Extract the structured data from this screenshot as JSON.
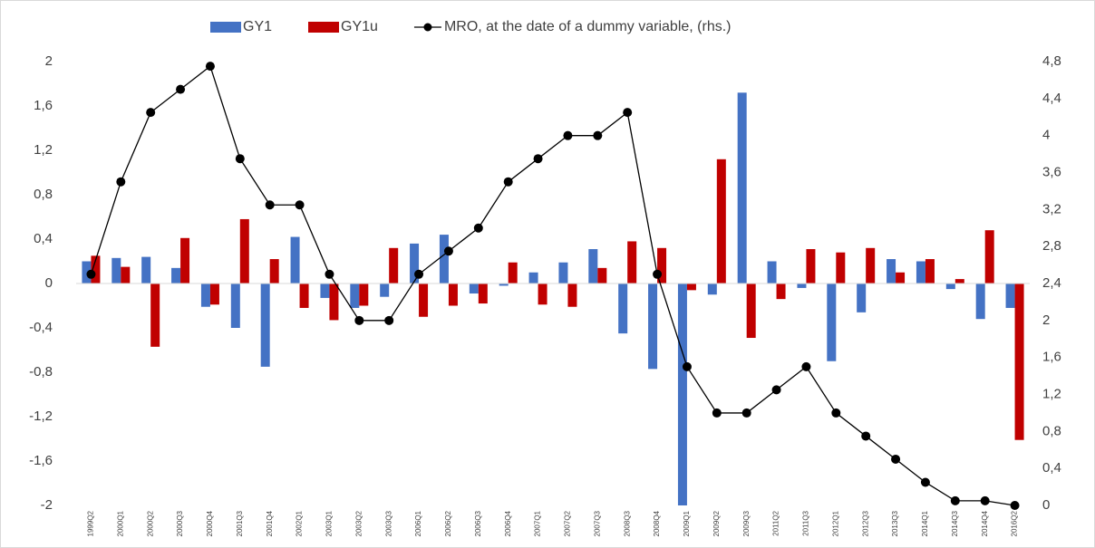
{
  "chart_data": {
    "type": "bar-line",
    "categories": [
      "1999Q2",
      "2000Q1",
      "2000Q2",
      "2000Q3",
      "2000Q4",
      "2001Q3",
      "2001Q4",
      "2002Q1",
      "2003Q1",
      "2003Q2",
      "2003Q3",
      "2006Q1",
      "2006Q2",
      "2006Q3",
      "2006Q4",
      "2007Q1",
      "2007Q2",
      "2007Q3",
      "2008Q3",
      "2008Q4",
      "2009Q1",
      "2009Q2",
      "2009Q3",
      "2011Q2",
      "2011Q3",
      "2012Q1",
      "2012Q3",
      "2013Q3",
      "2014Q1",
      "2014Q3",
      "2014Q4",
      "2016Q2"
    ],
    "series": [
      {
        "name": "GY1",
        "color": "#4472c4",
        "kind": "bar",
        "values": [
          0.2,
          0.23,
          0.24,
          0.14,
          -0.21,
          -0.4,
          -0.75,
          0.42,
          -0.13,
          -0.22,
          -0.12,
          0.36,
          0.44,
          -0.09,
          -0.02,
          0.1,
          0.19,
          0.31,
          -0.45,
          -0.77,
          -2.0,
          -0.1,
          1.72,
          0.2,
          -0.04,
          -0.7,
          -0.26,
          0.22,
          0.2,
          -0.05,
          -0.32,
          -0.22
        ]
      },
      {
        "name": "GY1u",
        "color": "#c00000",
        "kind": "bar",
        "values": [
          0.25,
          0.15,
          -0.57,
          0.41,
          -0.19,
          0.58,
          0.22,
          -0.22,
          -0.33,
          -0.2,
          0.32,
          -0.3,
          -0.2,
          -0.18,
          0.19,
          -0.19,
          -0.21,
          0.14,
          0.38,
          0.32,
          -0.06,
          1.12,
          -0.49,
          -0.14,
          0.31,
          0.28,
          0.32,
          0.1,
          0.22,
          0.04,
          0.48,
          -1.41
        ]
      },
      {
        "name": "MRO, at the date of a dummy variable, (rhs.)",
        "color": "#000000",
        "kind": "line",
        "axis": "y2",
        "values": [
          2.5,
          3.5,
          4.25,
          4.5,
          4.75,
          3.75,
          3.25,
          3.25,
          2.5,
          2.0,
          2.0,
          2.5,
          2.75,
          3.0,
          3.5,
          3.75,
          4.0,
          4.0,
          4.25,
          2.5,
          1.5,
          1.0,
          1.0,
          1.25,
          1.5,
          1.0,
          0.75,
          0.5,
          0.25,
          0.05,
          0.05,
          0.0
        ]
      }
    ],
    "ylim": [
      -2,
      2
    ],
    "yticks": [
      -2,
      {
        "value": -1.6,
        "label": "-1,6"
      },
      {
        "value": -1.2,
        "label": "-1,2"
      },
      {
        "value": -0.8,
        "label": "-0,8"
      },
      {
        "value": -0.4,
        "label": "-0,4"
      },
      0,
      {
        "value": 0.4,
        "label": "0,4"
      },
      {
        "value": 0.8,
        "label": "0,8"
      },
      {
        "value": 1.2,
        "label": "1,2"
      },
      {
        "value": 1.6,
        "label": "1,6"
      },
      2
    ],
    "y2lim": [
      0,
      4.8
    ],
    "y2ticks": [
      0,
      {
        "value": 0.4,
        "label": "0,4"
      },
      {
        "value": 0.8,
        "label": "0,8"
      },
      {
        "value": 1.2,
        "label": "1,2"
      },
      {
        "value": 1.6,
        "label": "1,6"
      },
      2,
      {
        "value": 2.4,
        "label": "2,4"
      },
      {
        "value": 2.8,
        "label": "2,8"
      },
      {
        "value": 3.2,
        "label": "3,2"
      },
      {
        "value": 3.6,
        "label": "3,6"
      },
      4,
      {
        "value": 4.4,
        "label": "4,4"
      },
      {
        "value": 4.8,
        "label": "4,8"
      }
    ],
    "grid": false,
    "legend": "top"
  }
}
